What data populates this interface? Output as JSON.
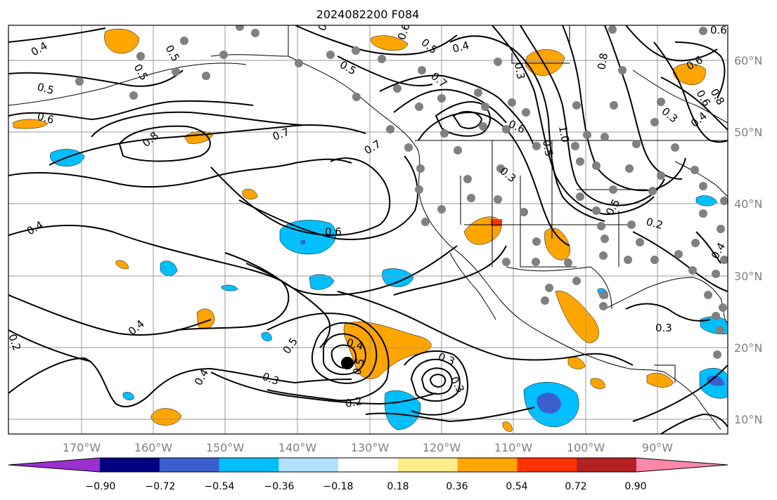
{
  "title": "2024082200 F084",
  "lon_ticks": [
    "170°W",
    "160°W",
    "150°W",
    "140°W",
    "130°W",
    "120°W",
    "110°W",
    "100°W",
    "90°W"
  ],
  "lat_ticks": [
    "60°N",
    "50°N",
    "40°N",
    "30°N",
    "20°N",
    "10°N"
  ],
  "colorbar": {
    "ticks": [
      "−0.90",
      "−0.72",
      "−0.54",
      "−0.36",
      "−0.18",
      "0.18",
      "0.36",
      "0.54",
      "0.72",
      "0.90"
    ],
    "colors": [
      "#9b30d0",
      "#000080",
      "#3a5fcd",
      "#00bfff",
      "#b0e2ff",
      "#ffffff",
      "#ffec8b",
      "#ffa500",
      "#ff3300",
      "#b22222",
      "#ff88aa"
    ]
  },
  "contour_labels": [
    "0.4",
    "0.5",
    "0.5",
    "0.6",
    "0.8",
    "0.7",
    "0.7",
    "0.6",
    "0.4",
    "0.5",
    "0.4",
    "0.2",
    "0.4",
    "0.3",
    "0.2",
    "0.5",
    "0.4",
    "0.5",
    "0.3",
    "0.3",
    "0.6",
    "0.5",
    "0.7",
    "0.6",
    "0.3",
    "0.5",
    "0.2",
    "0.6",
    "0.3",
    "0.4",
    "0.8",
    "0.6",
    "1.0",
    "0.5",
    "0.4",
    "0.3",
    "0.6",
    "0.3",
    "0.4",
    "0.8",
    "0.6",
    "0.5"
  ],
  "shading_colors": {
    "positive": "#ffa500",
    "negative": "#00bfff",
    "negative_strong": "#3a5fcd",
    "strong_positive": "#ff3300"
  },
  "marker_color": "#808080"
}
